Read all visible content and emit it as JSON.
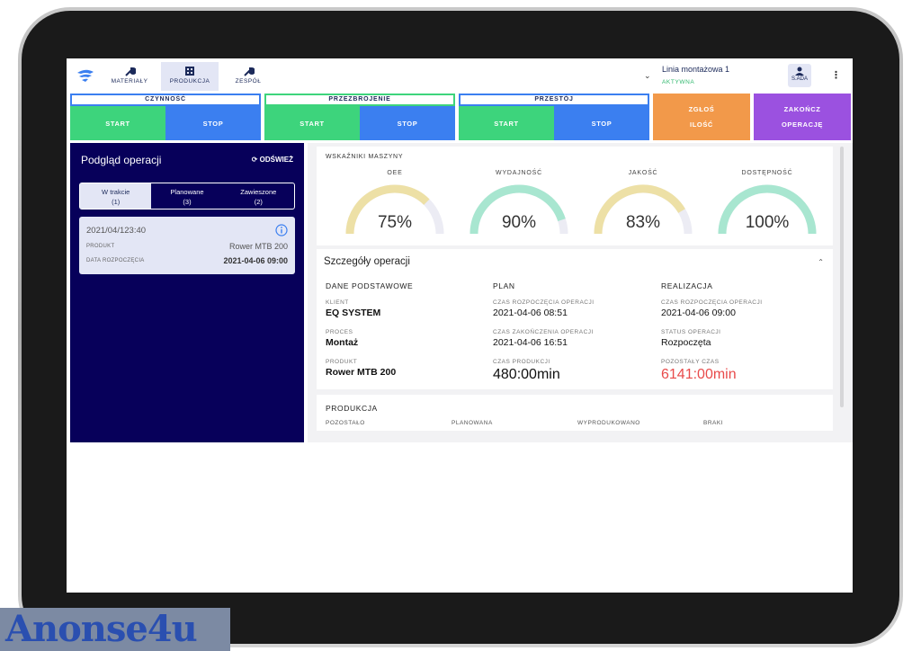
{
  "nav": {
    "items": [
      {
        "label": "MATERIAŁY",
        "icon": "wrench-icon"
      },
      {
        "label": "PRODUKCJA",
        "icon": "grid-icon",
        "active": true
      },
      {
        "label": "ZESPÓŁ",
        "icon": "tools-icon"
      }
    ],
    "line_name": "Linia montażowa 1",
    "line_status": "AKTYWNA",
    "user_label": "S.ADA"
  },
  "actions": {
    "activity": {
      "title": "CZYNNOŚĆ",
      "start": "START",
      "stop": "STOP",
      "color": "#3b7ff0"
    },
    "changeover": {
      "title": "PRZEZBROJENIE",
      "start": "START",
      "stop": "STOP",
      "color": "#3dd47c"
    },
    "downtime": {
      "title": "PRZESTÓJ",
      "start": "START",
      "stop": "STOP",
      "color": "#3b7ff0"
    },
    "report_qty": {
      "line1": "ZGŁOŚ",
      "line2": "ILOŚĆ",
      "color": "#f2994a"
    },
    "finish_op": {
      "line1": "ZAKOŃCZ",
      "line2": "OPERACJĘ",
      "color": "#9b51e0"
    }
  },
  "left": {
    "title": "Podgląd operacji",
    "refresh": "ODŚWIEŻ",
    "tabs": [
      {
        "label": "W trakcie",
        "count": "(1)"
      },
      {
        "label": "Planowane",
        "count": "(3)"
      },
      {
        "label": "Zawieszone",
        "count": "(2)"
      }
    ],
    "card": {
      "id": "2021/04/123:40",
      "product_key": "PRODUKT",
      "product_val": "Rower MTB 200",
      "start_key": "DATA ROZPOCZĘCIA",
      "start_val": "2021-04-06 09:00"
    }
  },
  "kpi": {
    "title": "WSKAŹNIKI MASZYNY",
    "gauges": [
      {
        "label": "OEE",
        "value": "75%",
        "fraction": 0.75,
        "color": "#ede0a6"
      },
      {
        "label": "WYDAJNOŚĆ",
        "value": "90%",
        "fraction": 0.9,
        "color": "#a8e6d0"
      },
      {
        "label": "JAKOŚĆ",
        "value": "83%",
        "fraction": 0.83,
        "color": "#ede0a6"
      },
      {
        "label": "DOSTĘPNOŚĆ",
        "value": "100%",
        "fraction": 1.0,
        "color": "#a8e6d0"
      }
    ]
  },
  "details": {
    "title": "Szczegóły operacji",
    "col1": {
      "header": "DANE PODSTAWOWE",
      "client_k": "KLIENT",
      "client_v": "EQ SYSTEM",
      "process_k": "PROCES",
      "process_v": "Montaż",
      "product_k": "PRODUKT",
      "product_v": "Rower MTB 200"
    },
    "col2": {
      "header": "PLAN",
      "start_k": "CZAS ROZPOCZĘCIA OPERACJI",
      "start_v": "2021-04-06 08:51",
      "end_k": "CZAS ZAKOŃCZENIA OPERACJI",
      "end_v": "2021-04-06 16:51",
      "prod_k": "CZAS PRODUKCJI",
      "prod_v": "480:00min"
    },
    "col3": {
      "header": "REALIZACJA",
      "start_k": "CZAS ROZPOCZĘCIA OPERACJI",
      "start_v": "2021-04-06 09:00",
      "status_k": "STATUS OPERACJI",
      "status_v": "Rozpoczęta",
      "remain_k": "POZOSTAŁY CZAS",
      "remain_v": "6141:00min"
    }
  },
  "production": {
    "title": "PRODUKCJA",
    "cols": [
      "POZOSTAŁO",
      "PLANOWANA",
      "WYPRODUKOWANO",
      "BRAKI"
    ]
  },
  "watermark": "Anonse4u"
}
